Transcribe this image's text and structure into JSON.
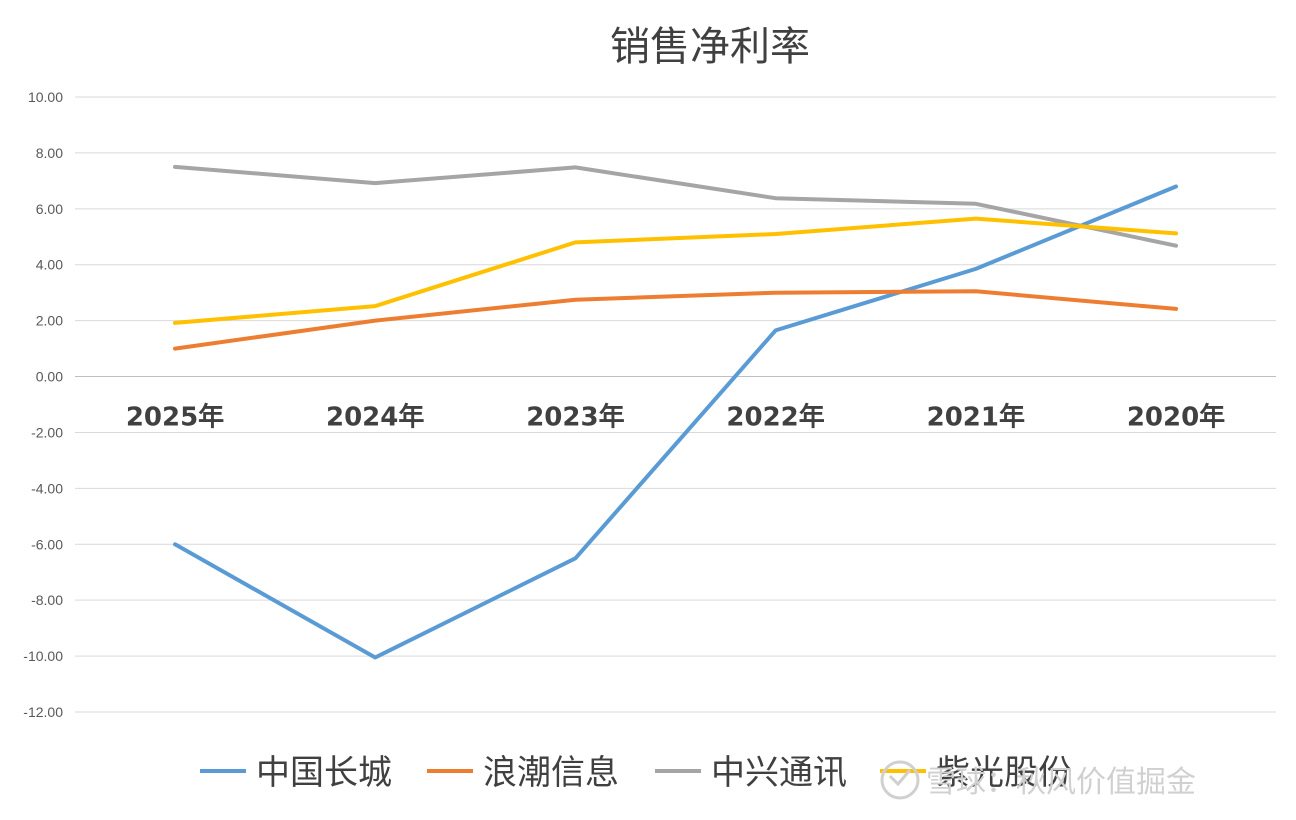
{
  "chart_data": {
    "type": "line",
    "title": "销售净利率",
    "categories": [
      "2025年",
      "2024年",
      "2023年",
      "2022年",
      "2021年",
      "2020年"
    ],
    "ylim": [
      -12,
      10
    ],
    "yticks": [
      "10.00",
      "8.00",
      "6.00",
      "4.00",
      "2.00",
      "0.00",
      "-2.00",
      "-4.00",
      "-6.00",
      "-8.00",
      "-10.00",
      "-12.00"
    ],
    "grid": true,
    "legend_position": "bottom",
    "series": [
      {
        "name": "中国长城",
        "color": "#5b9bd5",
        "values": [
          -6.0,
          -10.05,
          -6.5,
          1.65,
          3.85,
          6.8
        ]
      },
      {
        "name": "浪潮信息",
        "color": "#ed7d31",
        "values": [
          1.0,
          2.0,
          2.75,
          3.0,
          3.05,
          2.42
        ]
      },
      {
        "name": "中兴通讯",
        "color": "#a5a5a5",
        "values": [
          7.5,
          6.92,
          7.48,
          6.38,
          6.18,
          4.68
        ]
      },
      {
        "name": "紫光股份",
        "color": "#ffc000",
        "values": [
          1.92,
          2.52,
          4.8,
          5.1,
          5.65,
          5.12
        ]
      }
    ]
  },
  "watermark": "雪球：秋风价值掘金"
}
